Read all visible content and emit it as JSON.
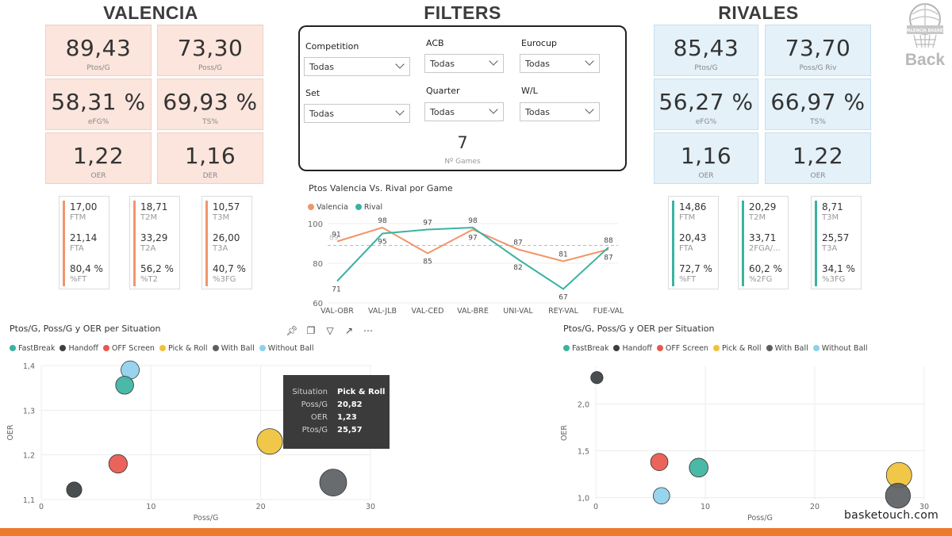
{
  "headers": {
    "valencia": "VALENCIA",
    "filters": "FILTERS",
    "rivales": "RIVALES"
  },
  "logo": {
    "back_label": "Back",
    "badge_text": "VALENCIA BASKET"
  },
  "colors": {
    "valencia": "#f2956a",
    "rival": "#3bb3a0",
    "valencia_bg": "#fbe5dd",
    "rival_bg": "#e4f1f9"
  },
  "valencia": {
    "kpis": [
      {
        "value": "89,43",
        "label": "Ptos/G"
      },
      {
        "value": "73,30",
        "label": "Poss/G"
      },
      {
        "value": "58,31 %",
        "label": "eFG%"
      },
      {
        "value": "69,93 %",
        "label": "TS%"
      },
      {
        "value": "1,22",
        "label": "OER"
      },
      {
        "value": "1,16",
        "label": "DER"
      }
    ],
    "stats": [
      [
        {
          "n": "17,00",
          "s": "FTM"
        },
        {
          "n": "21,14",
          "s": "FTA"
        },
        {
          "n": "80,4 %",
          "s": "%FT"
        }
      ],
      [
        {
          "n": "18,71",
          "s": "T2M"
        },
        {
          "n": "33,29",
          "s": "T2A"
        },
        {
          "n": "56,2 %",
          "s": "%T2"
        }
      ],
      [
        {
          "n": "10,57",
          "s": "T3M"
        },
        {
          "n": "26,00",
          "s": "T3A"
        },
        {
          "n": "40,7 %",
          "s": "%3FG"
        }
      ]
    ]
  },
  "rivales": {
    "kpis": [
      {
        "value": "85,43",
        "label": "Ptos/G"
      },
      {
        "value": "73,70",
        "label": "Poss/G Riv"
      },
      {
        "value": "56,27 %",
        "label": "eFG%"
      },
      {
        "value": "66,97 %",
        "label": "TS%"
      },
      {
        "value": "1,16",
        "label": "OER"
      },
      {
        "value": "1,22",
        "label": "OER"
      }
    ],
    "stats": [
      [
        {
          "n": "14,86",
          "s": "FTM"
        },
        {
          "n": "20,43",
          "s": "FTA"
        },
        {
          "n": "72,7 %",
          "s": "%FT"
        }
      ],
      [
        {
          "n": "20,29",
          "s": "T2M"
        },
        {
          "n": "33,71",
          "s": "2FGA/..."
        },
        {
          "n": "60,2 %",
          "s": "%2FG"
        }
      ],
      [
        {
          "n": "8,71",
          "s": "T3M"
        },
        {
          "n": "25,57",
          "s": "T3A"
        },
        {
          "n": "34,1 %",
          "s": "%3FG"
        }
      ]
    ]
  },
  "filters": {
    "competition": {
      "label": "Competition",
      "value": "Todas"
    },
    "acb": {
      "label": "ACB",
      "value": "Todas"
    },
    "eurocup": {
      "label": "Eurocup",
      "value": "Todas"
    },
    "set": {
      "label": "Set",
      "value": "Todas"
    },
    "quarter": {
      "label": "Quarter",
      "value": "Todas"
    },
    "wl": {
      "label": "W/L",
      "value": "Todas"
    },
    "games_value": "7",
    "games_label": "Nº Games"
  },
  "situations": [
    {
      "name": "FastBreak",
      "color": "#3bb3a0"
    },
    {
      "name": "Handoff",
      "color": "#3a3f42"
    },
    {
      "name": "OFF Screen",
      "color": "#e8574d"
    },
    {
      "name": "Pick & Roll",
      "color": "#f0c23b"
    },
    {
      "name": "With Ball",
      "color": "#5b5f62"
    },
    {
      "name": "Without Ball",
      "color": "#8fd0ec"
    }
  ],
  "chart_data": [
    {
      "type": "line",
      "title": "Ptos Valencia Vs. Rival por Game",
      "categories": [
        "VAL-OBR",
        "VAL-JLB",
        "VAL-CED",
        "VAL-BRE",
        "UNI-VAL",
        "REY-VAL",
        "FUE-VAL"
      ],
      "series": [
        {
          "name": "Valencia",
          "color": "#f2956a",
          "values": [
            91,
            98,
            85,
            97,
            87,
            81,
            87
          ]
        },
        {
          "name": "Rival",
          "color": "#3bb3a0",
          "values": [
            71,
            95,
            97,
            98,
            82,
            67,
            88
          ]
        }
      ],
      "average_line": {
        "label": "89",
        "value": 89
      },
      "yticks": [
        "100",
        "80",
        "60"
      ],
      "ylim": [
        60,
        100
      ]
    },
    {
      "type": "scatter",
      "title": "Ptos/G, Poss/G y OER per Situation",
      "xlabel": "Poss/G",
      "ylabel": "OER",
      "xlim": [
        0,
        30
      ],
      "ylim": [
        1.1,
        1.4
      ],
      "xticks": [
        "0",
        "10",
        "20",
        "30"
      ],
      "yticks": [
        "1,4",
        "1,3",
        "1,2",
        "1,1"
      ],
      "points": [
        {
          "situation": "Without Ball",
          "x": 8.1,
          "y": 1.39,
          "size": 7.5
        },
        {
          "situation": "FastBreak",
          "x": 7.6,
          "y": 1.356,
          "size": 7
        },
        {
          "situation": "Pick & Roll",
          "x": 20.82,
          "y": 1.23,
          "size": 25.57
        },
        {
          "situation": "OFF Screen",
          "x": 7.0,
          "y": 1.18,
          "size": 8
        },
        {
          "situation": "Handoff",
          "x": 3.0,
          "y": 1.122,
          "size": 3.3
        },
        {
          "situation": "With Ball",
          "x": 26.6,
          "y": 1.138,
          "size": 30
        }
      ],
      "tooltip": {
        "rows": [
          {
            "key": "Situation",
            "value": "Pick & Roll"
          },
          {
            "key": "Poss/G",
            "value": "20,82"
          },
          {
            "key": "OER",
            "value": "1,23"
          },
          {
            "key": "Ptos/G",
            "value": "25,57"
          }
        ]
      }
    },
    {
      "type": "scatter",
      "title": "Ptos/G, Poss/G y OER per Situation",
      "xlabel": "Poss/G",
      "ylabel": "OER",
      "xlim": [
        0,
        30
      ],
      "ylim": [
        0.98,
        2.4
      ],
      "xticks": [
        "0",
        "10",
        "20",
        "30"
      ],
      "yticks": [
        "2,0",
        "1,5",
        "1,0"
      ],
      "points": [
        {
          "situation": "Handoff",
          "x": 0.1,
          "y": 2.28,
          "size": 2
        },
        {
          "situation": "OFF Screen",
          "x": 5.8,
          "y": 1.38,
          "size": 7
        },
        {
          "situation": "FastBreak",
          "x": 9.4,
          "y": 1.32,
          "size": 9
        },
        {
          "situation": "Without Ball",
          "x": 6.0,
          "y": 1.02,
          "size": 6
        },
        {
          "situation": "Pick & Roll",
          "x": 27.7,
          "y": 1.24,
          "size": 21
        },
        {
          "situation": "With Ball",
          "x": 27.6,
          "y": 1.02,
          "size": 20
        }
      ]
    }
  ],
  "footer": {
    "brand": "basketouch.com"
  }
}
